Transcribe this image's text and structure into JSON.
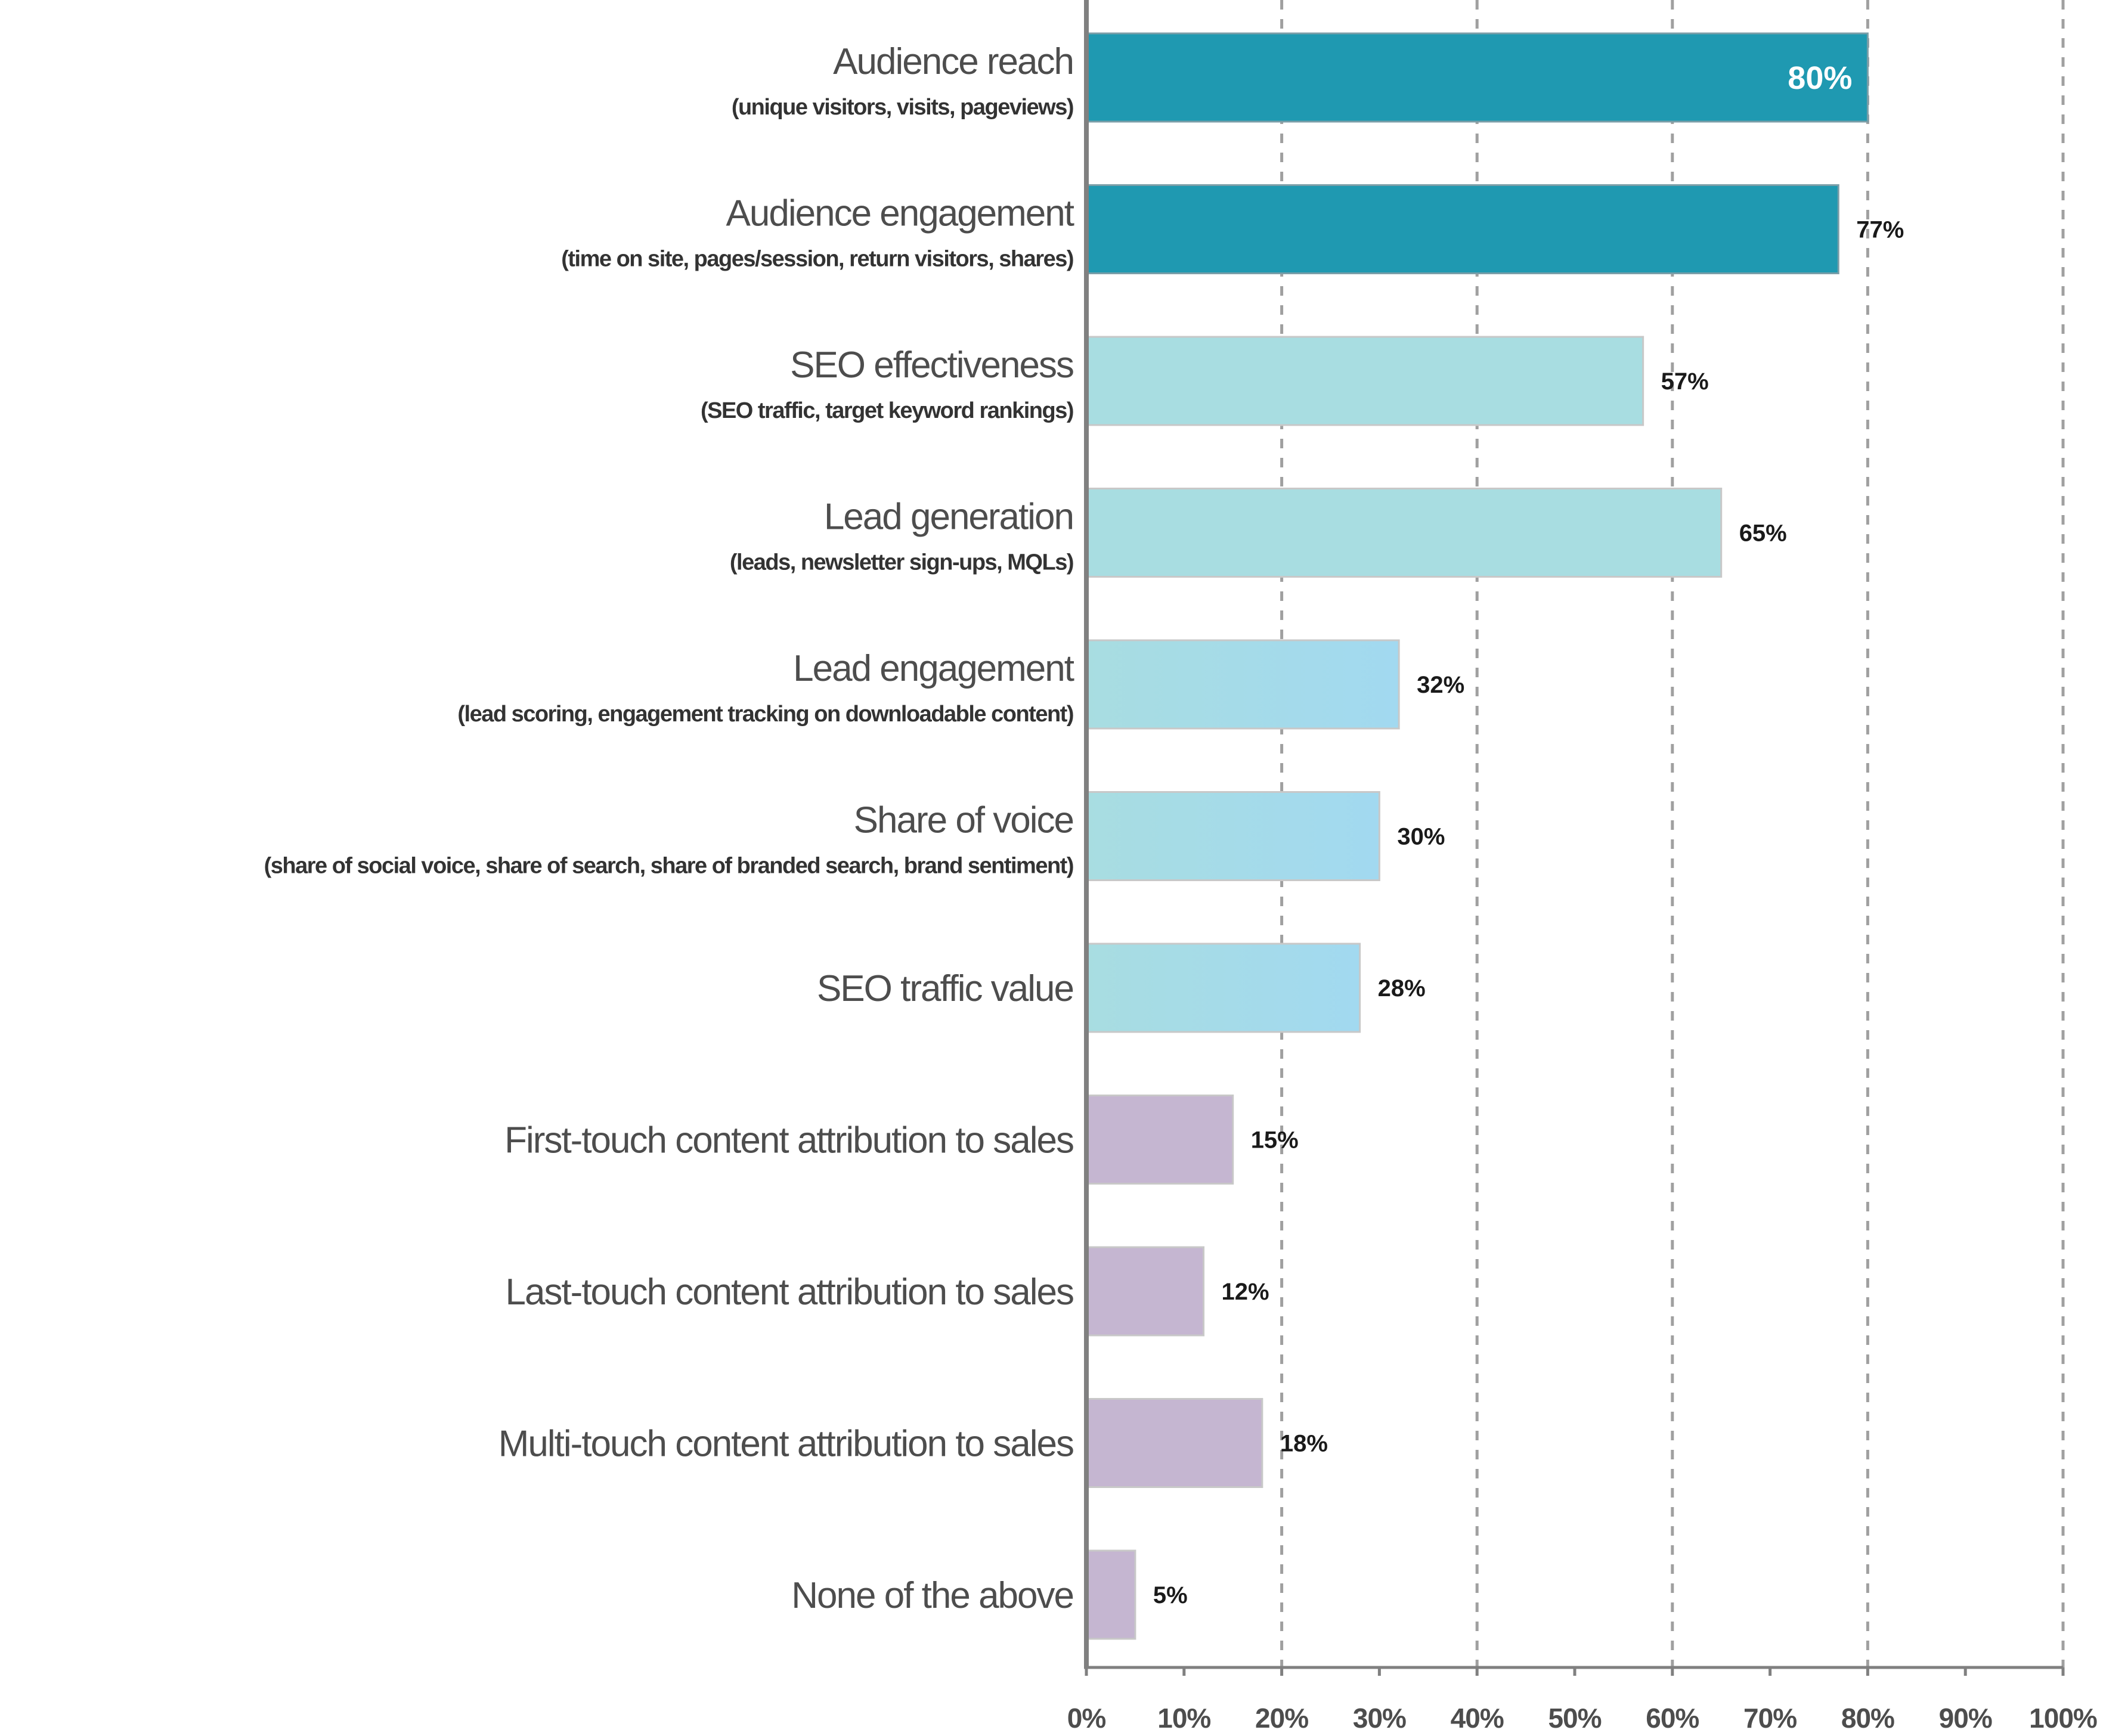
{
  "chart_data": {
    "type": "bar",
    "orientation": "horizontal",
    "title": "",
    "xlabel": "",
    "ylabel": "",
    "xlim": [
      0,
      100
    ],
    "grid": true,
    "legend": "none",
    "tick_labels": [
      "0%",
      "10%",
      "20%",
      "30%",
      "40%",
      "50%",
      "60%",
      "70%",
      "80%",
      "90%",
      "100%"
    ],
    "categories": [
      {
        "label": "Audience reach",
        "sublabel": "(unique visitors, visits, pageviews)",
        "value": 80,
        "value_label": "80%",
        "group": "audience",
        "label_inside": true
      },
      {
        "label": "Audience engagement",
        "sublabel": "(time on site, pages/session, return visitors, shares)",
        "value": 77,
        "value_label": "77%",
        "group": "audience",
        "label_inside": false
      },
      {
        "label": "SEO effectiveness",
        "sublabel": "(SEO traffic, target keyword rankings)",
        "value": 57,
        "value_label": "57%",
        "group": "mid",
        "label_inside": false
      },
      {
        "label": "Lead generation",
        "sublabel": "(leads, newsletter sign-ups, MQLs)",
        "value": 65,
        "value_label": "65%",
        "group": "mid",
        "label_inside": false
      },
      {
        "label": "Lead engagement",
        "sublabel": "(lead scoring, engagement tracking on downloadable content)",
        "value": 32,
        "value_label": "32%",
        "group": "gradient",
        "label_inside": false
      },
      {
        "label": "Share of voice",
        "sublabel": "(share of social voice, share of search, share of branded search, brand sentiment)",
        "value": 30,
        "value_label": "30%",
        "group": "gradient",
        "label_inside": false
      },
      {
        "label": "SEO traffic value",
        "sublabel": "",
        "value": 28,
        "value_label": "28%",
        "group": "gradient",
        "label_inside": false
      },
      {
        "label": "First-touch content attribution to sales",
        "sublabel": "",
        "value": 15,
        "value_label": "15%",
        "group": "sales",
        "label_inside": false
      },
      {
        "label": "Last-touch content attribution to sales",
        "sublabel": "",
        "value": 12,
        "value_label": "12%",
        "group": "sales",
        "label_inside": false
      },
      {
        "label": "Multi-touch content attribution to sales",
        "sublabel": "",
        "value": 18,
        "value_label": "18%",
        "group": "sales",
        "label_inside": false
      },
      {
        "label": "None of the above",
        "sublabel": "",
        "value": 5,
        "value_label": "5%",
        "group": "sales",
        "label_inside": false
      }
    ],
    "colors": {
      "audience": "#1f99b1",
      "mid": "#a8dde1",
      "gradient_start": "#a8dde1",
      "gradient_end": "#a2d9f0",
      "sales": "#c5b6d1",
      "axis": "#808080",
      "grid": "#a0a0a0"
    }
  }
}
